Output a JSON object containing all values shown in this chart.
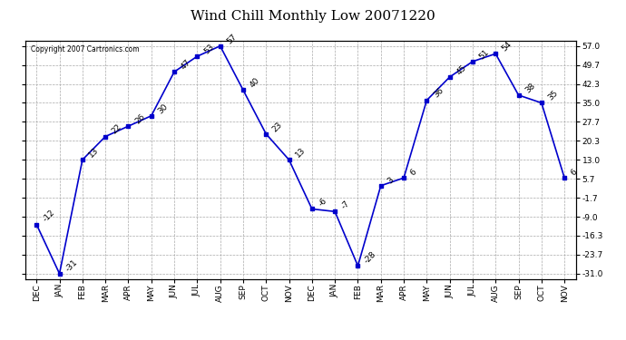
{
  "title": "Wind Chill Monthly Low 20071220",
  "copyright": "Copyright 2007 Cartronics.com",
  "x_labels": [
    "DEC",
    "JAN",
    "FEB",
    "MAR",
    "APR",
    "MAY",
    "JUN",
    "JUL",
    "AUG",
    "SEP",
    "OCT",
    "NOV",
    "DEC",
    "JAN",
    "FEB",
    "MAR",
    "APR",
    "MAY",
    "JUN",
    "JUL",
    "AUG",
    "SEP",
    "OCT",
    "NOV"
  ],
  "y_values": [
    -12,
    -31,
    13,
    22,
    26,
    30,
    47,
    53,
    57,
    40,
    23,
    13,
    -6,
    -7,
    -28,
    3,
    6,
    36,
    45,
    51,
    54,
    38,
    35,
    6
  ],
  "point_labels": [
    "-12",
    "-31",
    "13",
    "22",
    "26",
    "30",
    "47",
    "53",
    "57",
    "40",
    "23",
    "13",
    "-6",
    "-7",
    "-28",
    "3",
    "6",
    "36",
    "45",
    "51",
    "54",
    "38",
    "35",
    "6"
  ],
  "yticks": [
    -31.0,
    -23.7,
    -16.3,
    -9.0,
    -1.7,
    5.7,
    13.0,
    20.3,
    27.7,
    35.0,
    42.3,
    49.7,
    57.0
  ],
  "ylim_min": -33,
  "ylim_max": 59,
  "line_color": "#0000cc",
  "marker_color": "#0000cc",
  "background_color": "#ffffff",
  "grid_color": "#aaaaaa",
  "title_fontsize": 11,
  "tick_fontsize": 6.5,
  "label_fontsize": 6,
  "annot_fontsize": 6.5
}
